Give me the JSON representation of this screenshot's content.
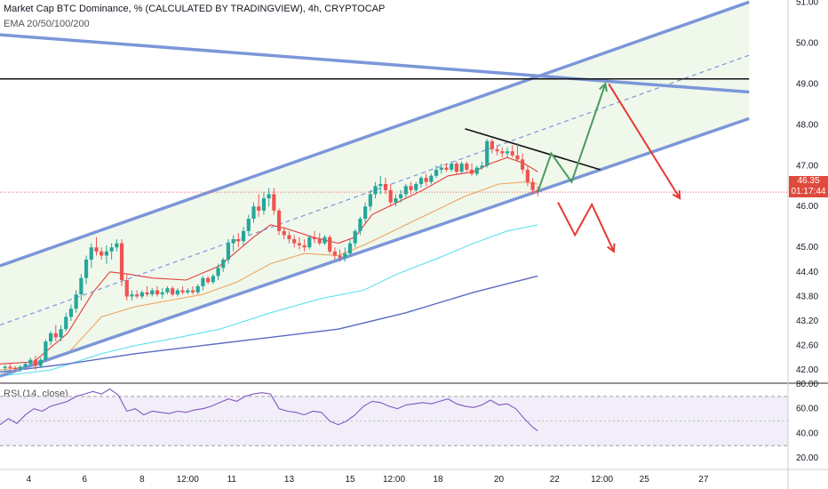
{
  "legend": {
    "title": "Market Cap BTC Dominance, % (CALCULATED BY TRADINGVIEW), 4h, CRYPTOCAP",
    "indicator": "EMA 20/50/100/200",
    "rsi": "RSI (14, close)"
  },
  "colors": {
    "up": "#26a69a",
    "down": "#ef5350",
    "channel": "#7b97d8",
    "fill": "#eef7ea",
    "ema20": "#e53935",
    "ema50": "#f0a35e",
    "ema100": "#5ee0f0",
    "ema200": "#5c6bc0",
    "arrow_green": "#4a9b60",
    "arrow_red": "#e53935",
    "rsi": "#7e57c2"
  },
  "price_tag": {
    "price": "46.35",
    "countdown": "01:17:44"
  },
  "chart_data": {
    "type": "candlestick",
    "price_axis": {
      "ylim": [
        41.7,
        51.05
      ],
      "ticks": [
        "51.00",
        "50.00",
        "49.00",
        "48.00",
        "47.00",
        "46.00",
        "45.00",
        "44.40",
        "43.80",
        "43.20",
        "42.60",
        "42.00"
      ]
    },
    "rsi_axis": {
      "ylim": [
        15,
        80
      ],
      "ticks": [
        "80.00",
        "60.00",
        "40.00",
        "20.00"
      ],
      "bands": [
        30,
        70
      ]
    },
    "x_axis": {
      "xlim": [
        0,
        466
      ],
      "ticks": [
        {
          "label": "4",
          "x": 17
        },
        {
          "label": "6",
          "x": 50
        },
        {
          "label": "8",
          "x": 84
        },
        {
          "label": "12:00",
          "x": 111
        },
        {
          "label": "11",
          "x": 137
        },
        {
          "label": "13",
          "x": 171
        },
        {
          "label": "15",
          "x": 207
        },
        {
          "label": "12:00",
          "x": 233
        },
        {
          "label": "18",
          "x": 259
        },
        {
          "label": "20",
          "x": 295
        },
        {
          "label": "22",
          "x": 328
        },
        {
          "label": "12:00",
          "x": 356
        },
        {
          "label": "25",
          "x": 381
        },
        {
          "label": "27",
          "x": 416
        }
      ]
    },
    "candles": [
      [
        3,
        42.05,
        42.12,
        41.95,
        42.08
      ],
      [
        6,
        42.08,
        42.15,
        42.0,
        42.05
      ],
      [
        9,
        42.05,
        42.1,
        41.97,
        42.02
      ],
      [
        12,
        42.02,
        42.12,
        41.95,
        42.08
      ],
      [
        15,
        42.08,
        42.2,
        42.0,
        42.15
      ],
      [
        18,
        42.15,
        42.3,
        42.1,
        42.25
      ],
      [
        21,
        42.25,
        42.35,
        42.0,
        42.1
      ],
      [
        24,
        42.1,
        42.3,
        42.05,
        42.25
      ],
      [
        27,
        42.25,
        42.75,
        42.2,
        42.7
      ],
      [
        30,
        42.7,
        42.95,
        42.6,
        42.9
      ],
      [
        33,
        42.9,
        43.1,
        42.7,
        42.8
      ],
      [
        36,
        42.8,
        43.1,
        42.7,
        43.0
      ],
      [
        39,
        43.0,
        43.4,
        42.95,
        43.3
      ],
      [
        42,
        43.3,
        43.6,
        43.2,
        43.5
      ],
      [
        45,
        43.5,
        43.95,
        43.4,
        43.85
      ],
      [
        48,
        43.85,
        44.35,
        43.7,
        44.25
      ],
      [
        51,
        44.25,
        44.8,
        44.1,
        44.7
      ],
      [
        54,
        44.7,
        45.1,
        44.5,
        45.0
      ],
      [
        57,
        45.0,
        45.25,
        44.8,
        44.9
      ],
      [
        60,
        44.9,
        45.0,
        44.7,
        44.8
      ],
      [
        63,
        44.8,
        45.05,
        44.6,
        44.9
      ],
      [
        66,
        44.9,
        45.1,
        44.7,
        45.0
      ],
      [
        69,
        45.0,
        45.2,
        44.9,
        45.1
      ],
      [
        72,
        45.1,
        45.2,
        44.05,
        44.2
      ],
      [
        75,
        44.2,
        44.35,
        43.7,
        43.8
      ],
      [
        78,
        43.8,
        43.95,
        43.7,
        43.85
      ],
      [
        81,
        43.85,
        43.95,
        43.75,
        43.8
      ],
      [
        84,
        43.8,
        43.95,
        43.75,
        43.9
      ],
      [
        87,
        43.9,
        44.05,
        43.8,
        43.85
      ],
      [
        90,
        43.85,
        44.0,
        43.8,
        43.95
      ],
      [
        93,
        43.95,
        44.05,
        43.8,
        43.85
      ],
      [
        96,
        43.85,
        44.0,
        43.75,
        43.9
      ],
      [
        99,
        43.9,
        44.05,
        43.85,
        44.0
      ],
      [
        102,
        44.0,
        44.05,
        43.8,
        43.85
      ],
      [
        105,
        43.85,
        44.0,
        43.8,
        43.95
      ],
      [
        108,
        43.95,
        44.05,
        43.85,
        43.9
      ],
      [
        111,
        43.9,
        44.0,
        43.85,
        43.95
      ],
      [
        114,
        43.95,
        44.05,
        43.85,
        43.9
      ],
      [
        117,
        43.9,
        44.1,
        43.85,
        44.05
      ],
      [
        120,
        44.05,
        44.3,
        43.95,
        44.25
      ],
      [
        123,
        44.25,
        44.3,
        44.1,
        44.15
      ],
      [
        126,
        44.15,
        44.35,
        44.1,
        44.3
      ],
      [
        129,
        44.3,
        44.6,
        44.2,
        44.5
      ],
      [
        132,
        44.5,
        44.75,
        44.4,
        44.7
      ],
      [
        135,
        44.7,
        45.2,
        44.6,
        45.1
      ],
      [
        138,
        45.1,
        45.3,
        44.9,
        45.2
      ],
      [
        141,
        45.2,
        45.35,
        45.0,
        45.15
      ],
      [
        144,
        45.15,
        45.5,
        45.05,
        45.4
      ],
      [
        147,
        45.4,
        45.8,
        45.3,
        45.7
      ],
      [
        150,
        45.7,
        46.1,
        45.6,
        46.0
      ],
      [
        153,
        46.0,
        46.3,
        45.75,
        45.9
      ],
      [
        156,
        45.9,
        46.35,
        45.8,
        46.2
      ],
      [
        159,
        46.2,
        46.45,
        46.0,
        46.3
      ],
      [
        162,
        46.3,
        46.45,
        45.8,
        45.9
      ],
      [
        165,
        45.9,
        45.95,
        45.3,
        45.4
      ],
      [
        168,
        45.4,
        45.5,
        45.2,
        45.3
      ],
      [
        171,
        45.3,
        45.4,
        45.1,
        45.2
      ],
      [
        174,
        45.2,
        45.3,
        45.0,
        45.1
      ],
      [
        177,
        45.1,
        45.25,
        44.95,
        45.05
      ],
      [
        180,
        45.05,
        45.2,
        44.9,
        45.0
      ],
      [
        183,
        45.0,
        45.3,
        44.95,
        45.25
      ],
      [
        186,
        45.25,
        45.4,
        45.1,
        45.2
      ],
      [
        189,
        45.2,
        45.35,
        45.05,
        45.1
      ],
      [
        192,
        45.1,
        45.3,
        45.05,
        45.25
      ],
      [
        195,
        45.25,
        45.3,
        44.85,
        44.9
      ],
      [
        198,
        44.9,
        45.0,
        44.7,
        44.8
      ],
      [
        201,
        44.8,
        44.95,
        44.65,
        44.75
      ],
      [
        204,
        44.75,
        45.0,
        44.65,
        44.85
      ],
      [
        207,
        44.85,
        45.2,
        44.8,
        45.1
      ],
      [
        210,
        45.1,
        45.45,
        45.0,
        45.4
      ],
      [
        213,
        45.4,
        45.75,
        45.3,
        45.7
      ],
      [
        216,
        45.7,
        46.1,
        45.6,
        46.0
      ],
      [
        219,
        46.0,
        46.4,
        45.9,
        46.3
      ],
      [
        222,
        46.3,
        46.6,
        46.2,
        46.5
      ],
      [
        225,
        46.5,
        46.75,
        46.3,
        46.55
      ],
      [
        228,
        46.55,
        46.7,
        46.3,
        46.4
      ],
      [
        231,
        46.4,
        46.55,
        46.0,
        46.1
      ],
      [
        234,
        46.1,
        46.3,
        46.0,
        46.2
      ],
      [
        237,
        46.2,
        46.4,
        46.1,
        46.3
      ],
      [
        240,
        46.3,
        46.55,
        46.2,
        46.5
      ],
      [
        243,
        46.5,
        46.6,
        46.3,
        46.4
      ],
      [
        246,
        46.4,
        46.6,
        46.35,
        46.55
      ],
      [
        249,
        46.55,
        46.75,
        46.45,
        46.7
      ],
      [
        252,
        46.7,
        46.8,
        46.5,
        46.6
      ],
      [
        255,
        46.6,
        46.8,
        46.55,
        46.75
      ],
      [
        258,
        46.75,
        47.0,
        46.7,
        46.9
      ],
      [
        261,
        46.9,
        47.05,
        46.8,
        46.95
      ],
      [
        264,
        46.95,
        47.05,
        46.85,
        46.9
      ],
      [
        267,
        46.9,
        47.1,
        46.85,
        47.05
      ],
      [
        270,
        47.05,
        47.1,
        46.8,
        46.85
      ],
      [
        273,
        46.85,
        47.1,
        46.8,
        47.05
      ],
      [
        276,
        47.05,
        47.1,
        46.85,
        46.9
      ],
      [
        279,
        46.9,
        47.05,
        46.75,
        46.8
      ],
      [
        282,
        46.8,
        47.0,
        46.75,
        46.95
      ],
      [
        285,
        46.95,
        47.1,
        46.9,
        47.0
      ],
      [
        288,
        47.0,
        47.65,
        46.95,
        47.6
      ],
      [
        291,
        47.6,
        47.65,
        47.3,
        47.4
      ],
      [
        294,
        47.4,
        47.5,
        47.25,
        47.35
      ],
      [
        297,
        47.35,
        47.45,
        47.2,
        47.3
      ],
      [
        300,
        47.3,
        47.45,
        47.2,
        47.35
      ],
      [
        303,
        47.35,
        47.5,
        47.2,
        47.25
      ],
      [
        306,
        47.25,
        47.55,
        47.1,
        47.15
      ],
      [
        309,
        47.15,
        47.3,
        46.8,
        46.9
      ],
      [
        312,
        46.9,
        47.0,
        46.5,
        46.6
      ],
      [
        315,
        46.6,
        46.7,
        46.3,
        46.4
      ],
      [
        318,
        46.4,
        46.5,
        46.25,
        46.35
      ]
    ],
    "series": [
      {
        "values": [
          [
            0,
            42.15
          ],
          [
            20,
            42.2
          ],
          [
            40,
            42.9
          ],
          [
            55,
            43.9
          ],
          [
            65,
            44.4
          ],
          [
            75,
            44.35
          ],
          [
            90,
            44.25
          ],
          [
            110,
            44.2
          ],
          [
            130,
            44.55
          ],
          [
            150,
            45.25
          ],
          [
            160,
            45.55
          ],
          [
            170,
            45.45
          ],
          [
            185,
            45.25
          ],
          [
            200,
            45.1
          ],
          [
            210,
            45.25
          ],
          [
            220,
            45.8
          ],
          [
            235,
            46.1
          ],
          [
            250,
            46.4
          ],
          [
            265,
            46.75
          ],
          [
            280,
            46.85
          ],
          [
            290,
            47.05
          ],
          [
            300,
            47.2
          ],
          [
            310,
            47.05
          ],
          [
            318,
            46.85
          ]
        ]
      },
      {
        "values": [
          [
            0,
            42.0
          ],
          [
            20,
            42.1
          ],
          [
            40,
            42.4
          ],
          [
            60,
            43.3
          ],
          [
            80,
            43.55
          ],
          [
            100,
            43.7
          ],
          [
            120,
            43.85
          ],
          [
            140,
            44.15
          ],
          [
            160,
            44.6
          ],
          [
            180,
            44.85
          ],
          [
            200,
            44.8
          ],
          [
            215,
            45.05
          ],
          [
            235,
            45.45
          ],
          [
            255,
            45.85
          ],
          [
            275,
            46.25
          ],
          [
            295,
            46.55
          ],
          [
            310,
            46.6
          ],
          [
            318,
            46.55
          ]
        ]
      },
      {
        "values": [
          [
            0,
            41.85
          ],
          [
            30,
            42.0
          ],
          [
            60,
            42.4
          ],
          [
            80,
            42.6
          ],
          [
            100,
            42.75
          ],
          [
            130,
            43.0
          ],
          [
            160,
            43.4
          ],
          [
            190,
            43.75
          ],
          [
            215,
            43.95
          ],
          [
            235,
            44.35
          ],
          [
            260,
            44.75
          ],
          [
            280,
            45.1
          ],
          [
            300,
            45.4
          ],
          [
            318,
            45.55
          ]
        ]
      },
      {
        "values": [
          [
            0,
            41.95
          ],
          [
            40,
            42.15
          ],
          [
            80,
            42.4
          ],
          [
            120,
            42.6
          ],
          [
            160,
            42.8
          ],
          [
            200,
            43.0
          ],
          [
            240,
            43.4
          ],
          [
            280,
            43.9
          ],
          [
            318,
            44.3
          ]
        ]
      }
    ],
    "channel_lines": [
      [
        [
          0,
          44.55
        ],
        [
          443,
          51.0
        ]
      ],
      [
        [
          0,
          41.85
        ],
        [
          443,
          48.15
        ]
      ],
      [
        [
          0,
          43.1
        ],
        [
          443,
          49.7
        ]
      ],
      [
        [
          0,
          50.2
        ],
        [
          443,
          48.8
        ]
      ],
      [
        [
          0,
          49.12
        ],
        [
          443,
          49.12
        ]
      ],
      [
        [
          275,
          47.9
        ],
        [
          355,
          46.9
        ]
      ]
    ],
    "forecast_green": [
      [
        318,
        46.35
      ],
      [
        326,
        47.3
      ],
      [
        338,
        46.6
      ],
      [
        358,
        49.0
      ]
    ],
    "forecast_red_main": [
      [
        360,
        49.0
      ],
      [
        402,
        46.2
      ]
    ],
    "forecast_red_small": [
      [
        330,
        46.1
      ],
      [
        340,
        45.3
      ],
      [
        350,
        46.05
      ],
      [
        363,
        44.9
      ]
    ],
    "rsi": [
      [
        0,
        47
      ],
      [
        5,
        52
      ],
      [
        10,
        48
      ],
      [
        15,
        55
      ],
      [
        20,
        60
      ],
      [
        25,
        58
      ],
      [
        30,
        62
      ],
      [
        35,
        64
      ],
      [
        40,
        66
      ],
      [
        45,
        70
      ],
      [
        50,
        72
      ],
      [
        55,
        74
      ],
      [
        60,
        72
      ],
      [
        65,
        76
      ],
      [
        70,
        71
      ],
      [
        75,
        58
      ],
      [
        80,
        60
      ],
      [
        85,
        55
      ],
      [
        90,
        58
      ],
      [
        95,
        57
      ],
      [
        100,
        56
      ],
      [
        105,
        58
      ],
      [
        110,
        57
      ],
      [
        115,
        59
      ],
      [
        120,
        60
      ],
      [
        125,
        62
      ],
      [
        130,
        65
      ],
      [
        135,
        68
      ],
      [
        140,
        66
      ],
      [
        145,
        70
      ],
      [
        150,
        72
      ],
      [
        155,
        73
      ],
      [
        160,
        72
      ],
      [
        165,
        60
      ],
      [
        170,
        58
      ],
      [
        175,
        57
      ],
      [
        180,
        55
      ],
      [
        185,
        58
      ],
      [
        190,
        57
      ],
      [
        195,
        50
      ],
      [
        200,
        47
      ],
      [
        205,
        50
      ],
      [
        210,
        55
      ],
      [
        215,
        62
      ],
      [
        220,
        66
      ],
      [
        225,
        65
      ],
      [
        230,
        62
      ],
      [
        235,
        60
      ],
      [
        240,
        63
      ],
      [
        245,
        64
      ],
      [
        250,
        65
      ],
      [
        255,
        64
      ],
      [
        260,
        66
      ],
      [
        265,
        68
      ],
      [
        270,
        64
      ],
      [
        275,
        62
      ],
      [
        280,
        61
      ],
      [
        285,
        63
      ],
      [
        290,
        67
      ],
      [
        295,
        63
      ],
      [
        300,
        64
      ],
      [
        305,
        60
      ],
      [
        310,
        52
      ],
      [
        315,
        45
      ],
      [
        318,
        42
      ]
    ]
  }
}
